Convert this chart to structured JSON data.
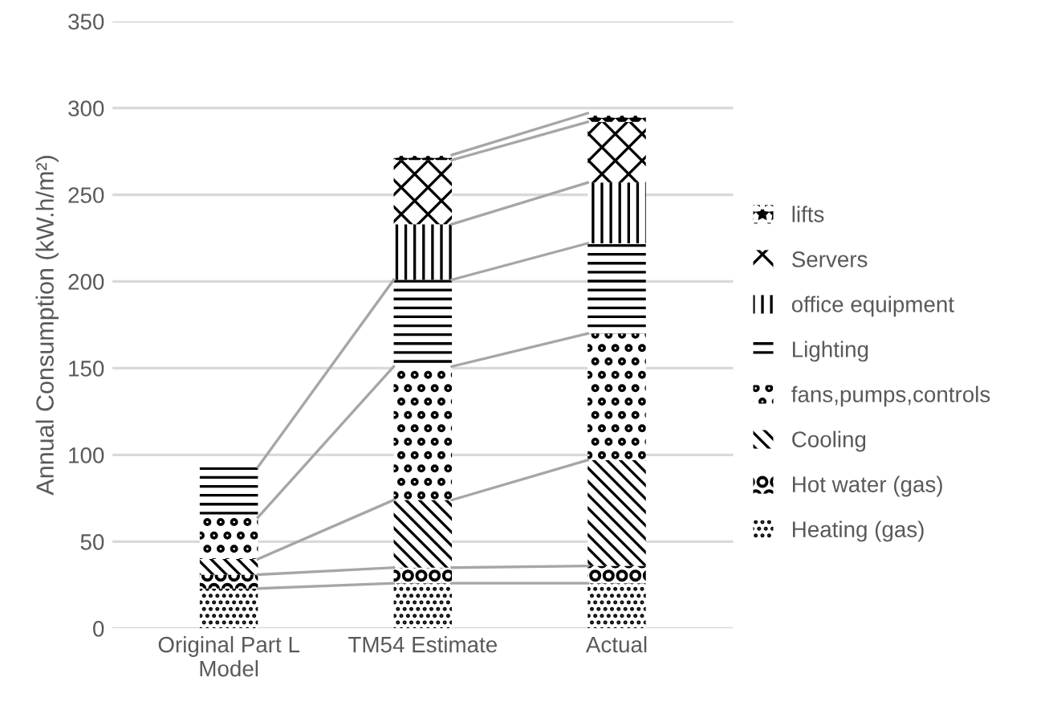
{
  "chart_data": {
    "type": "bar",
    "stacked": true,
    "ylabel": "Annual Consumption (kW.h/m²)",
    "categories": [
      "Original Part L\nModel",
      "TM54 Estimate",
      "Actual"
    ],
    "series": [
      {
        "name": "Heating (gas)",
        "color": "#000000",
        "values": [
          23,
          26,
          26
        ]
      },
      {
        "name": "Hot water (gas)",
        "color": "#000000",
        "values": [
          8,
          9,
          10
        ]
      },
      {
        "name": "Cooling",
        "color": "#000000",
        "values": [
          9,
          39,
          61
        ]
      },
      {
        "name": "fans,pumps,controls",
        "color": "#000000",
        "values": [
          24,
          77,
          73
        ]
      },
      {
        "name": "Lighting",
        "color": "#000000",
        "values": [
          29,
          50,
          52
        ]
      },
      {
        "name": "office equipment",
        "color": "#000000",
        "values": [
          null,
          32,
          35
        ]
      },
      {
        "name": "Servers",
        "color": "#000000",
        "values": [
          null,
          37,
          35
        ]
      },
      {
        "name": "lifts",
        "color": "#000000",
        "values": [
          null,
          3,
          5
        ]
      }
    ],
    "ylim": [
      0,
      350
    ],
    "yticks": [
      0,
      50,
      100,
      150,
      200,
      250,
      300,
      350
    ],
    "grid": "y",
    "legend": "right"
  }
}
